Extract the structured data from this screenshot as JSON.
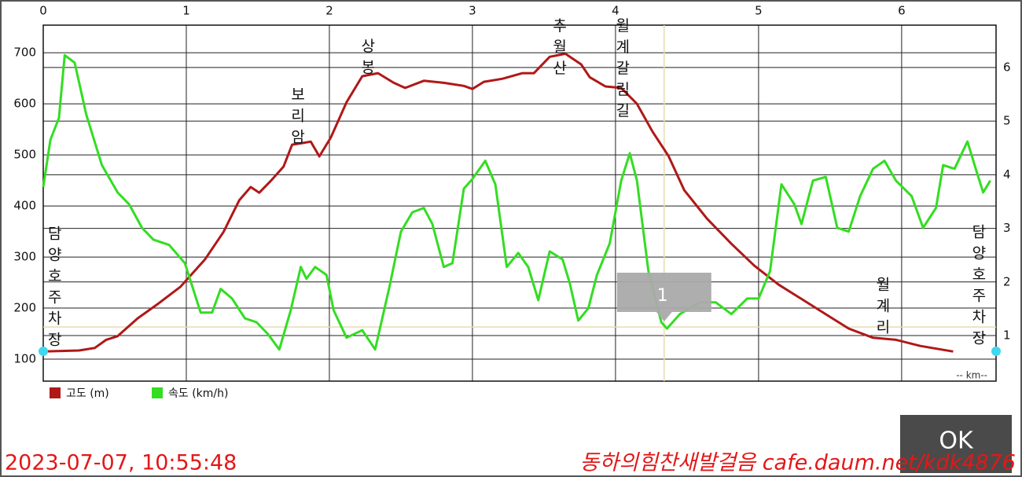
{
  "chart_data": {
    "type": "line",
    "xlabel": "-- km--",
    "xlim": [
      0,
      6.66
    ],
    "xticks": [
      0,
      1,
      2,
      3,
      4,
      5,
      6
    ],
    "ylim": [
      57,
      754
    ],
    "yticks": [
      100,
      200,
      300,
      400,
      500,
      600,
      700
    ],
    "y2lim": [
      0.15,
      6.79
    ],
    "y2ticks": [
      1,
      2,
      3,
      4,
      5,
      6
    ],
    "grid": true,
    "legend": "bottom-left",
    "series": [
      {
        "name": "고도 (m)",
        "color": "#b01818",
        "x": [
          0,
          0.25,
          0.36,
          0.44,
          0.52,
          0.66,
          0.8,
          0.96,
          1.13,
          1.26,
          1.37,
          1.45,
          1.51,
          1.59,
          1.68,
          1.74,
          1.81,
          1.87,
          1.93,
          2.01,
          2.12,
          2.23,
          2.34,
          2.45,
          2.53,
          2.66,
          2.8,
          2.94,
          3.0,
          3.08,
          3.21,
          3.35,
          3.43,
          3.54,
          3.65,
          3.76,
          3.82,
          3.93,
          4.04,
          4.15,
          4.26,
          4.37,
          4.48,
          4.64,
          4.81,
          4.97,
          5.14,
          5.3,
          5.47,
          5.63,
          5.8,
          5.96,
          6.13,
          6.36
        ],
        "values": [
          115,
          117,
          122,
          138,
          145,
          180,
          208,
          242,
          295,
          349,
          411,
          437,
          426,
          449,
          477,
          520,
          523,
          526,
          497,
          534,
          603,
          654,
          660,
          641,
          631,
          645,
          641,
          635,
          629,
          643,
          649,
          660,
          660,
          692,
          698,
          677,
          652,
          634,
          631,
          600,
          545,
          498,
          431,
          375,
          326,
          283,
          246,
          218,
          188,
          160,
          142,
          138,
          126,
          115
        ]
      },
      {
        "name": "속도 (km/h)",
        "color": "#33dd22",
        "axis": "y2",
        "x": [
          0,
          0.05,
          0.11,
          0.15,
          0.22,
          0.3,
          0.41,
          0.52,
          0.6,
          0.69,
          0.77,
          0.88,
          0.99,
          1.1,
          1.18,
          1.24,
          1.32,
          1.41,
          1.49,
          1.57,
          1.65,
          1.73,
          1.8,
          1.84,
          1.9,
          1.98,
          2.03,
          2.12,
          2.23,
          2.32,
          2.42,
          2.5,
          2.58,
          2.66,
          2.72,
          2.8,
          2.86,
          2.94,
          3.0,
          3.09,
          3.16,
          3.24,
          3.32,
          3.39,
          3.46,
          3.54,
          3.63,
          3.68,
          3.74,
          3.81,
          3.87,
          3.96,
          4.04,
          4.1,
          4.15,
          4.23,
          4.32,
          4.36,
          4.45,
          4.59,
          4.7,
          4.81,
          4.92,
          5.0,
          5.08,
          5.16,
          5.25,
          5.3,
          5.38,
          5.47,
          5.55,
          5.63,
          5.71,
          5.8,
          5.88,
          5.96,
          6.07,
          6.15,
          6.24,
          6.29,
          6.37,
          6.46,
          6.51,
          6.57,
          6.62
        ],
        "values": [
          3.77,
          4.65,
          5.06,
          6.23,
          6.09,
          5.13,
          4.18,
          3.67,
          3.45,
          3.01,
          2.79,
          2.69,
          2.35,
          1.43,
          1.43,
          1.87,
          1.69,
          1.32,
          1.25,
          1.03,
          0.74,
          1.47,
          2.28,
          2.06,
          2.28,
          2.13,
          1.47,
          0.96,
          1.1,
          0.74,
          1.91,
          2.94,
          3.3,
          3.38,
          3.08,
          2.28,
          2.35,
          3.74,
          3.92,
          4.26,
          3.82,
          2.28,
          2.54,
          2.28,
          1.66,
          2.57,
          2.42,
          1.98,
          1.28,
          1.51,
          2.13,
          2.72,
          3.89,
          4.4,
          3.89,
          2.2,
          1.25,
          1.13,
          1.4,
          1.62,
          1.62,
          1.4,
          1.69,
          1.69,
          2.2,
          3.82,
          3.45,
          3.08,
          3.89,
          3.96,
          3.01,
          2.94,
          3.6,
          4.11,
          4.26,
          3.89,
          3.6,
          3.01,
          3.38,
          4.18,
          4.11,
          4.62,
          4.18,
          3.67,
          3.89
        ]
      }
    ],
    "annotations": [
      {
        "text": "담양호주차장",
        "x": 0.07,
        "y": 362
      },
      {
        "text": "보리암",
        "x": 1.77,
        "y": 634
      },
      {
        "text": "상봉",
        "x": 2.26,
        "y": 729
      },
      {
        "text": "추월산",
        "x": 3.6,
        "y": 769
      },
      {
        "text": "월계갈림길",
        "x": 4.04,
        "y": 769
      },
      {
        "text": "월계리",
        "x": 5.86,
        "y": 262
      },
      {
        "text": "담양호주차장",
        "x": 6.53,
        "y": 365
      }
    ],
    "cursor": {
      "x": 4.34,
      "y": 163,
      "label": "1"
    }
  },
  "button": "OK",
  "timestamp": "2023-07-07, 10:55:48",
  "watermark": "동하의힘찬새발걸음 cafe.daum.net/kdk4876"
}
